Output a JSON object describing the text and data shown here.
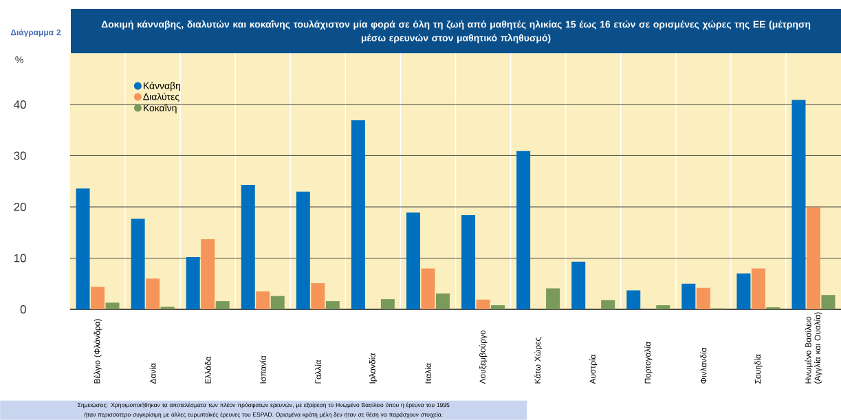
{
  "chart_data": {
    "type": "bar",
    "title": "Δοκιμή κάνναβης, διαλυτών και κοκαΐνης τουλάχιστον μία φορά σε όλη τη ζωή από μαθητές ηλικίας 15 έως 16 ετών σε ορισμένες χώρες της ΕΕ (μέτρηση μέσω ερευνών στον μαθητικό πληθυσμό)",
    "ylabel": "%",
    "annotations": [
      "Διάγραμμα 2",
      "Σημειώσεις: Χρησιμοποιήθηκαν τα αποτελέσματα των πλέον πρόσφατων ερευνών, με εξαίρεση το Ηνωμένο Βασίλειο όπου η έρευνα του 1995 ήταν περισσότερο συγκρίσιμη με άλλες ευρωπαϊκές έρευνες του ESPAD. Ορισμένα κράτη μέλη δεν ήταν σε θέση να παράσχουν στοιχεία."
    ],
    "categories": [
      "Βέλγιο (Φλάνδρα)",
      "Δανία",
      "Ελλάδα",
      "Ισπανία",
      "Γαλλία",
      "Ιρλανδία",
      "Ιταλία",
      "Λουξεμβούργο",
      "Κάτω Χώρες",
      "Αυστρία",
      "Πορτογαλία",
      "Φινλανδία",
      "Σουηδία",
      "Ηνωμένο Βασίλειο (Αγγλία και Ουαλία)"
    ],
    "series": [
      {
        "name": "Κάνναβη",
        "color": "#0070c0",
        "values": [
          23.6,
          17.7,
          10.2,
          24.3,
          23.0,
          36.9,
          18.9,
          18.4,
          30.9,
          9.3,
          3.7,
          5.0,
          7.0,
          40.9
        ]
      },
      {
        "name": "Διαλύτες",
        "color": "#f59559",
        "values": [
          4.4,
          6.0,
          13.7,
          3.5,
          5.1,
          null,
          8.0,
          1.9,
          null,
          null,
          null,
          4.2,
          8.0,
          19.9
        ]
      },
      {
        "name": "Κοκαΐνη",
        "color": "#7a9a5c",
        "values": [
          1.3,
          0.5,
          1.6,
          2.6,
          1.6,
          2.0,
          3.1,
          0.8,
          4.1,
          1.8,
          0.8,
          0.2,
          0.4,
          2.8
        ]
      }
    ],
    "ylim": [
      0,
      50
    ],
    "yticks": [
      0,
      10,
      20,
      30,
      40
    ],
    "grid": "y",
    "legend": "top left"
  }
}
